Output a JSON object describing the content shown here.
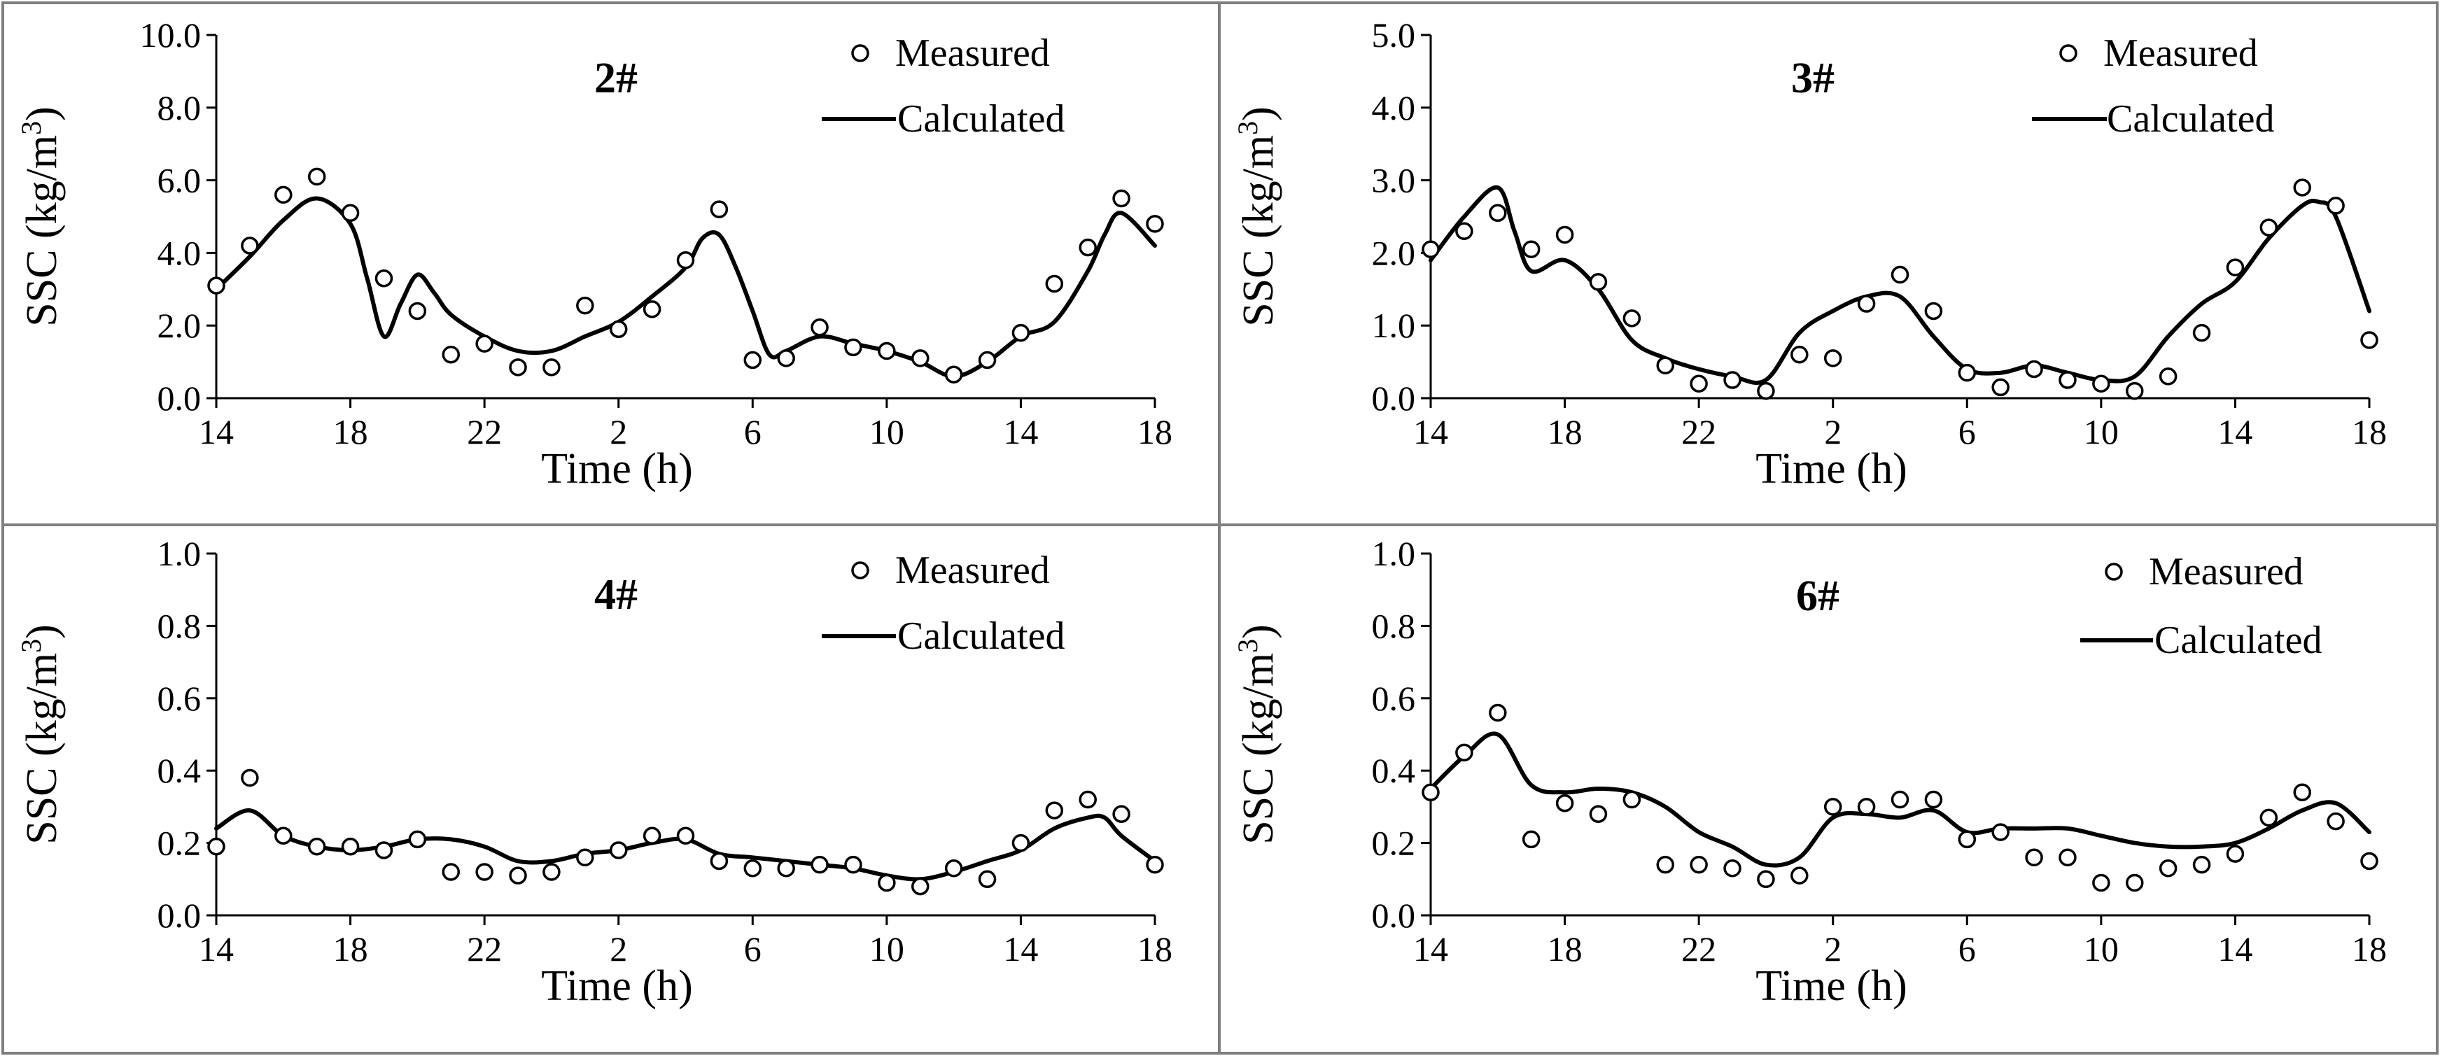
{
  "chart_data": [
    {
      "type": "scatter+line",
      "title": "2#",
      "xlabel": "Time (h)",
      "ylabel_main": "SSC (kg/m",
      "ylabel_sup": "3",
      "ylabel_close": ")",
      "xlim": [
        14,
        42
      ],
      "ylim": [
        0,
        10
      ],
      "x_tick_values": [
        14,
        18,
        22,
        26,
        30,
        34,
        38,
        42
      ],
      "x_tick_labels": [
        "14",
        "18",
        "22",
        "2",
        "6",
        "10",
        "14",
        "18"
      ],
      "y_tick_values": [
        0,
        2,
        4,
        6,
        8,
        10
      ],
      "y_tick_labels": [
        "0.0",
        "2.0",
        "4.0",
        "6.0",
        "8.0",
        "10.0"
      ],
      "legend": {
        "measured": "Measured",
        "calculated": "Calculated"
      },
      "measured": {
        "x": [
          14,
          15,
          16,
          17,
          18,
          19,
          20,
          21,
          22,
          23,
          24,
          25,
          26,
          27,
          28,
          29,
          30,
          31,
          32,
          33,
          34,
          35,
          36,
          37,
          38,
          39,
          40,
          41,
          42
        ],
        "y": [
          3.1,
          4.2,
          5.6,
          6.1,
          5.1,
          3.3,
          2.4,
          1.2,
          1.5,
          0.85,
          0.85,
          2.55,
          1.9,
          2.45,
          3.8,
          5.2,
          1.05,
          1.1,
          1.95,
          1.4,
          1.3,
          1.1,
          0.65,
          1.05,
          1.8,
          3.15,
          4.15,
          5.5,
          4.8
        ]
      },
      "calculated": {
        "x": [
          14,
          15,
          16,
          17,
          18,
          18.5,
          19,
          19.5,
          20,
          20.5,
          21,
          22,
          23,
          24,
          25,
          26,
          27,
          28,
          28.5,
          29,
          29.5,
          30,
          30.5,
          31,
          32,
          33,
          34,
          35,
          36,
          37,
          38,
          39,
          40,
          40.5,
          41,
          42
        ],
        "y": [
          3.0,
          3.9,
          4.9,
          5.5,
          4.8,
          3.3,
          1.7,
          2.6,
          3.4,
          2.9,
          2.3,
          1.7,
          1.3,
          1.3,
          1.7,
          2.1,
          2.8,
          3.6,
          4.4,
          4.5,
          3.6,
          2.4,
          1.2,
          1.3,
          1.7,
          1.5,
          1.3,
          1.0,
          0.6,
          1.0,
          1.7,
          2.1,
          3.5,
          4.5,
          5.1,
          4.2
        ]
      }
    },
    {
      "type": "scatter+line",
      "title": "3#",
      "xlabel": "Time (h)",
      "ylabel_main": "SSC (kg/m",
      "ylabel_sup": "3",
      "ylabel_close": ")",
      "xlim": [
        14,
        42
      ],
      "ylim": [
        0,
        5
      ],
      "x_tick_values": [
        14,
        18,
        22,
        26,
        30,
        34,
        38,
        42
      ],
      "x_tick_labels": [
        "14",
        "18",
        "22",
        "2",
        "6",
        "10",
        "14",
        "18"
      ],
      "y_tick_values": [
        0,
        1,
        2,
        3,
        4,
        5
      ],
      "y_tick_labels": [
        "0.0",
        "1.0",
        "2.0",
        "3.0",
        "4.0",
        "5.0"
      ],
      "legend": {
        "measured": "Measured",
        "calculated": "Calculated"
      },
      "measured": {
        "x": [
          14,
          15,
          16,
          17,
          18,
          19,
          20,
          21,
          22,
          23,
          24,
          25,
          26,
          27,
          28,
          29,
          30,
          31,
          32,
          33,
          34,
          35,
          36,
          37,
          38,
          39,
          40,
          41,
          42
        ],
        "y": [
          2.05,
          2.3,
          2.55,
          2.05,
          2.25,
          1.6,
          1.1,
          0.45,
          0.2,
          0.25,
          0.1,
          0.6,
          0.55,
          1.3,
          1.7,
          1.2,
          0.35,
          0.15,
          0.4,
          0.25,
          0.2,
          0.1,
          0.3,
          0.9,
          1.8,
          2.35,
          2.9,
          2.65,
          0.8
        ]
      },
      "calculated": {
        "x": [
          14,
          15,
          16,
          16.5,
          17,
          18,
          19,
          20,
          21,
          22,
          23,
          24,
          25,
          26,
          27,
          28,
          29,
          30,
          31,
          32,
          33,
          34,
          35,
          36,
          37,
          38,
          39,
          40,
          40.5,
          41,
          42
        ],
        "y": [
          1.9,
          2.5,
          2.9,
          2.3,
          1.75,
          1.9,
          1.5,
          0.8,
          0.55,
          0.4,
          0.3,
          0.25,
          0.9,
          1.2,
          1.4,
          1.4,
          0.85,
          0.4,
          0.35,
          0.45,
          0.35,
          0.25,
          0.3,
          0.85,
          1.3,
          1.6,
          2.2,
          2.65,
          2.7,
          2.5,
          1.2
        ]
      }
    },
    {
      "type": "scatter+line",
      "title": "4#",
      "xlabel": "Time (h)",
      "ylabel_main": "SSC (kg/m",
      "ylabel_sup": "3",
      "ylabel_close": ")",
      "xlim": [
        14,
        42
      ],
      "ylim": [
        0,
        1
      ],
      "x_tick_values": [
        14,
        18,
        22,
        26,
        30,
        34,
        38,
        42
      ],
      "x_tick_labels": [
        "14",
        "18",
        "22",
        "2",
        "6",
        "10",
        "14",
        "18"
      ],
      "y_tick_values": [
        0,
        0.2,
        0.4,
        0.6,
        0.8,
        1.0
      ],
      "y_tick_labels": [
        "0.0",
        "0.2",
        "0.4",
        "0.6",
        "0.8",
        "1.0"
      ],
      "legend": {
        "measured": "Measured",
        "calculated": "Calculated"
      },
      "measured": {
        "x": [
          14,
          15,
          16,
          17,
          18,
          19,
          20,
          21,
          22,
          23,
          24,
          25,
          26,
          27,
          28,
          29,
          30,
          31,
          32,
          33,
          34,
          35,
          36,
          37,
          38,
          39,
          40,
          41,
          42
        ],
        "y": [
          0.19,
          0.38,
          0.22,
          0.19,
          0.19,
          0.18,
          0.21,
          0.12,
          0.12,
          0.11,
          0.12,
          0.16,
          0.18,
          0.22,
          0.22,
          0.15,
          0.13,
          0.13,
          0.14,
          0.14,
          0.09,
          0.08,
          0.13,
          0.1,
          0.2,
          0.29,
          0.32,
          0.28,
          0.14
        ]
      },
      "calculated": {
        "x": [
          14,
          15,
          16,
          17,
          18,
          19,
          20,
          21,
          22,
          23,
          24,
          25,
          26,
          27,
          28,
          29,
          30,
          31,
          32,
          33,
          34,
          35,
          36,
          37,
          38,
          39,
          40,
          40.5,
          41,
          42
        ],
        "y": [
          0.24,
          0.29,
          0.22,
          0.19,
          0.18,
          0.19,
          0.21,
          0.21,
          0.19,
          0.15,
          0.15,
          0.17,
          0.18,
          0.2,
          0.21,
          0.17,
          0.16,
          0.15,
          0.14,
          0.13,
          0.11,
          0.1,
          0.12,
          0.15,
          0.18,
          0.24,
          0.27,
          0.27,
          0.22,
          0.15
        ]
      }
    },
    {
      "type": "scatter+line",
      "title": "6#",
      "xlabel": "Time (h)",
      "ylabel_main": "SSC (kg/m",
      "ylabel_sup": "3",
      "ylabel_close": ")",
      "xlim": [
        14,
        42
      ],
      "ylim": [
        0,
        1
      ],
      "x_tick_values": [
        14,
        18,
        22,
        26,
        30,
        34,
        38,
        42
      ],
      "x_tick_labels": [
        "14",
        "18",
        "22",
        "2",
        "6",
        "10",
        "14",
        "18"
      ],
      "y_tick_values": [
        0,
        0.2,
        0.4,
        0.6,
        0.8,
        1.0
      ],
      "y_tick_labels": [
        "0.0",
        "0.2",
        "0.4",
        "0.6",
        "0.8",
        "1.0"
      ],
      "legend": {
        "measured": "Measured",
        "calculated": "Calculated"
      },
      "measured": {
        "x": [
          14,
          15,
          16,
          17,
          18,
          19,
          20,
          21,
          22,
          23,
          24,
          25,
          26,
          27,
          28,
          29,
          30,
          31,
          32,
          33,
          34,
          35,
          36,
          37,
          38,
          39,
          40,
          41,
          42
        ],
        "y": [
          0.34,
          0.45,
          0.56,
          0.21,
          0.31,
          0.28,
          0.32,
          0.14,
          0.14,
          0.13,
          0.1,
          0.11,
          0.3,
          0.3,
          0.32,
          0.32,
          0.21,
          0.23,
          0.16,
          0.16,
          0.09,
          0.09,
          0.13,
          0.14,
          0.17,
          0.27,
          0.34,
          0.26,
          0.15
        ]
      },
      "calculated": {
        "x": [
          14,
          15,
          16,
          17,
          18,
          19,
          20,
          21,
          22,
          23,
          24,
          25,
          26,
          27,
          28,
          29,
          30,
          31,
          32,
          33,
          34,
          35,
          36,
          37,
          38,
          39,
          40,
          41,
          42
        ],
        "y": [
          0.35,
          0.44,
          0.5,
          0.36,
          0.34,
          0.35,
          0.34,
          0.3,
          0.23,
          0.19,
          0.14,
          0.16,
          0.27,
          0.28,
          0.27,
          0.29,
          0.23,
          0.24,
          0.24,
          0.24,
          0.22,
          0.2,
          0.19,
          0.19,
          0.2,
          0.24,
          0.29,
          0.31,
          0.23
        ]
      }
    }
  ]
}
